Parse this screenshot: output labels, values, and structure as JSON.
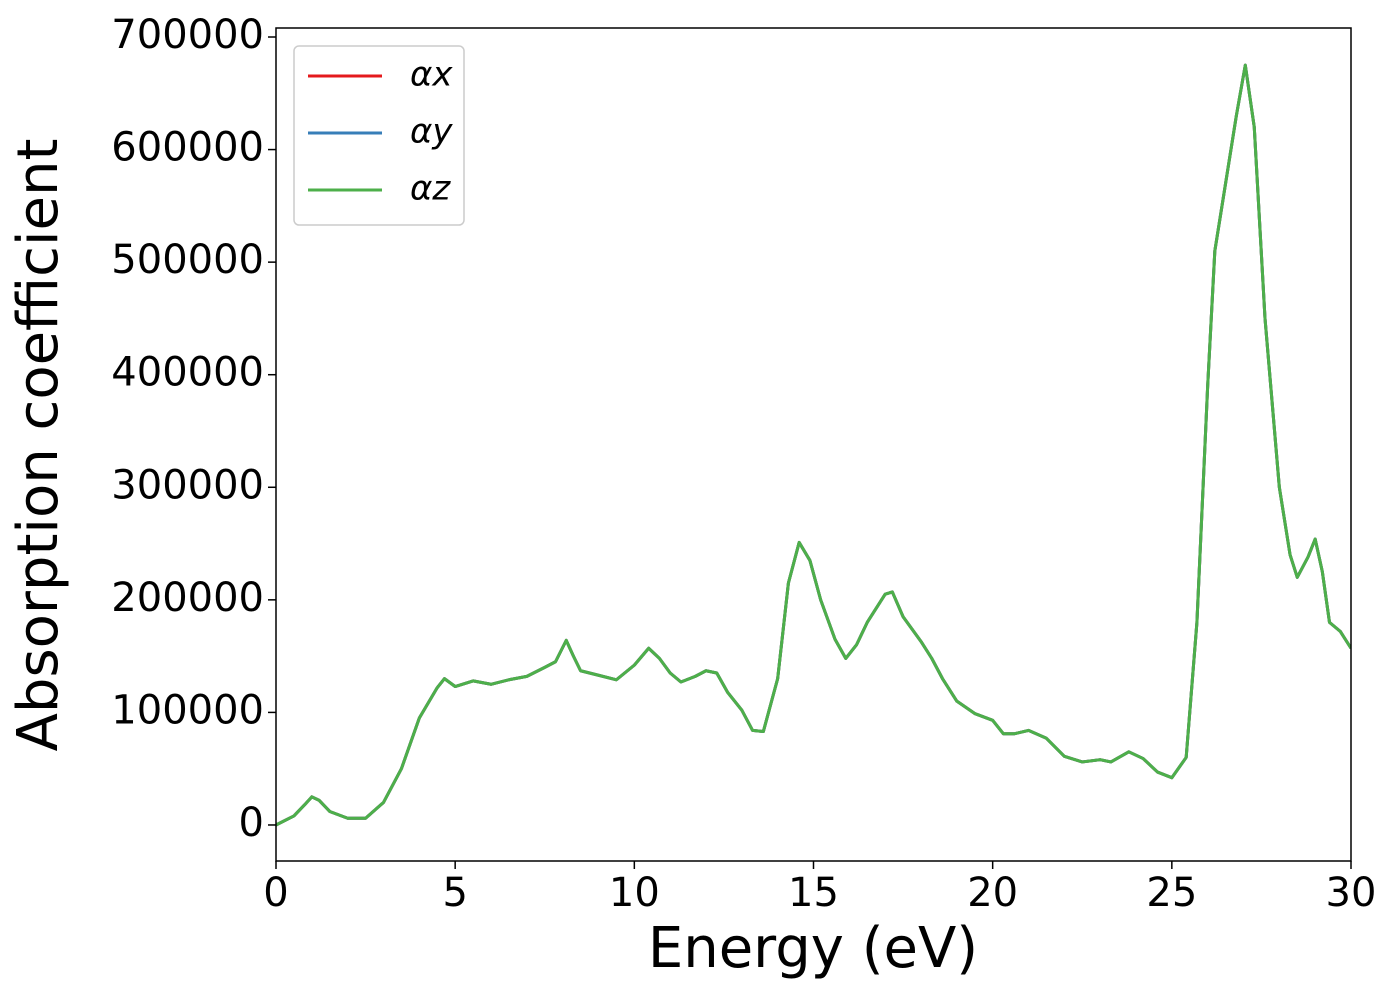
{
  "chart_data": {
    "type": "line",
    "xlabel": "Energy (eV)",
    "ylabel": "Absorption coefficient",
    "x": [
      0,
      0.5,
      0.8,
      1.0,
      1.2,
      1.5,
      2.0,
      2.5,
      3.0,
      3.5,
      4.0,
      4.5,
      4.7,
      5.0,
      5.5,
      6.0,
      6.5,
      7.0,
      7.5,
      7.8,
      8.1,
      8.3,
      8.5,
      9.0,
      9.5,
      10.0,
      10.4,
      10.7,
      11.0,
      11.3,
      11.7,
      12.0,
      12.3,
      12.6,
      13.0,
      13.3,
      13.6,
      14.0,
      14.3,
      14.6,
      14.9,
      15.2,
      15.6,
      15.9,
      16.2,
      16.5,
      17.0,
      17.2,
      17.5,
      18.0,
      18.3,
      18.6,
      19.0,
      19.5,
      20.0,
      20.3,
      20.6,
      21.0,
      21.5,
      22.0,
      22.5,
      23.0,
      23.3,
      23.8,
      24.2,
      24.6,
      25.0,
      25.4,
      25.7,
      26.0,
      26.2,
      26.5,
      26.8,
      27.05,
      27.3,
      27.6,
      28.0,
      28.3,
      28.5,
      28.8,
      29.0,
      29.2,
      29.4,
      29.7,
      30.0
    ],
    "series": [
      {
        "name": "αx",
        "color": "#e41a1c",
        "values": [
          0,
          8000,
          18000,
          25000,
          22000,
          12000,
          6000,
          6000,
          20000,
          50000,
          95000,
          122000,
          130000,
          123000,
          128000,
          125000,
          129000,
          132000,
          140000,
          145000,
          164000,
          150000,
          137000,
          133000,
          129000,
          142000,
          157000,
          148000,
          135000,
          127000,
          132000,
          137000,
          135000,
          118000,
          102000,
          84000,
          83000,
          130000,
          215000,
          251000,
          235000,
          200000,
          165000,
          148000,
          160000,
          180000,
          205000,
          207000,
          185000,
          163000,
          148000,
          130000,
          110000,
          99000,
          93000,
          81000,
          81000,
          84000,
          77000,
          61000,
          56000,
          58000,
          56000,
          65000,
          59000,
          47000,
          42000,
          60000,
          180000,
          390000,
          510000,
          570000,
          630000,
          675000,
          620000,
          450000,
          300000,
          240000,
          220000,
          238000,
          254000,
          225000,
          180000,
          172000,
          157000
        ]
      },
      {
        "name": "αy",
        "color": "#377eb8",
        "values": [
          0,
          8000,
          18000,
          25000,
          22000,
          12000,
          6000,
          6000,
          20000,
          50000,
          95000,
          122000,
          130000,
          123000,
          128000,
          125000,
          129000,
          132000,
          140000,
          145000,
          164000,
          150000,
          137000,
          133000,
          129000,
          142000,
          157000,
          148000,
          135000,
          127000,
          132000,
          137000,
          135000,
          118000,
          102000,
          84000,
          83000,
          130000,
          215000,
          251000,
          235000,
          200000,
          165000,
          148000,
          160000,
          180000,
          205000,
          207000,
          185000,
          163000,
          148000,
          130000,
          110000,
          99000,
          93000,
          81000,
          81000,
          84000,
          77000,
          61000,
          56000,
          58000,
          56000,
          65000,
          59000,
          47000,
          42000,
          60000,
          180000,
          390000,
          510000,
          570000,
          630000,
          675000,
          620000,
          450000,
          300000,
          240000,
          220000,
          238000,
          254000,
          225000,
          180000,
          172000,
          157000
        ]
      },
      {
        "name": "αz",
        "color": "#4daf4a",
        "values": [
          0,
          8000,
          18000,
          25000,
          22000,
          12000,
          6000,
          6000,
          20000,
          50000,
          95000,
          122000,
          130000,
          123000,
          128000,
          125000,
          129000,
          132000,
          140000,
          145000,
          164000,
          150000,
          137000,
          133000,
          129000,
          142000,
          157000,
          148000,
          135000,
          127000,
          132000,
          137000,
          135000,
          118000,
          102000,
          84000,
          83000,
          130000,
          215000,
          251000,
          235000,
          200000,
          165000,
          148000,
          160000,
          180000,
          205000,
          207000,
          185000,
          163000,
          148000,
          130000,
          110000,
          99000,
          93000,
          81000,
          81000,
          84000,
          77000,
          61000,
          56000,
          58000,
          56000,
          65000,
          59000,
          47000,
          42000,
          60000,
          180000,
          390000,
          510000,
          570000,
          630000,
          675000,
          620000,
          450000,
          300000,
          240000,
          220000,
          238000,
          254000,
          225000,
          180000,
          172000,
          157000
        ]
      }
    ],
    "xlim": [
      0,
      30
    ],
    "xticks": [
      0,
      5,
      10,
      15,
      20,
      25,
      30
    ],
    "ylim": [
      -32000,
      708000
    ],
    "yticks": [
      0,
      100000,
      200000,
      300000,
      400000,
      500000,
      600000,
      700000
    ],
    "grid": false,
    "legend": "upper left"
  }
}
